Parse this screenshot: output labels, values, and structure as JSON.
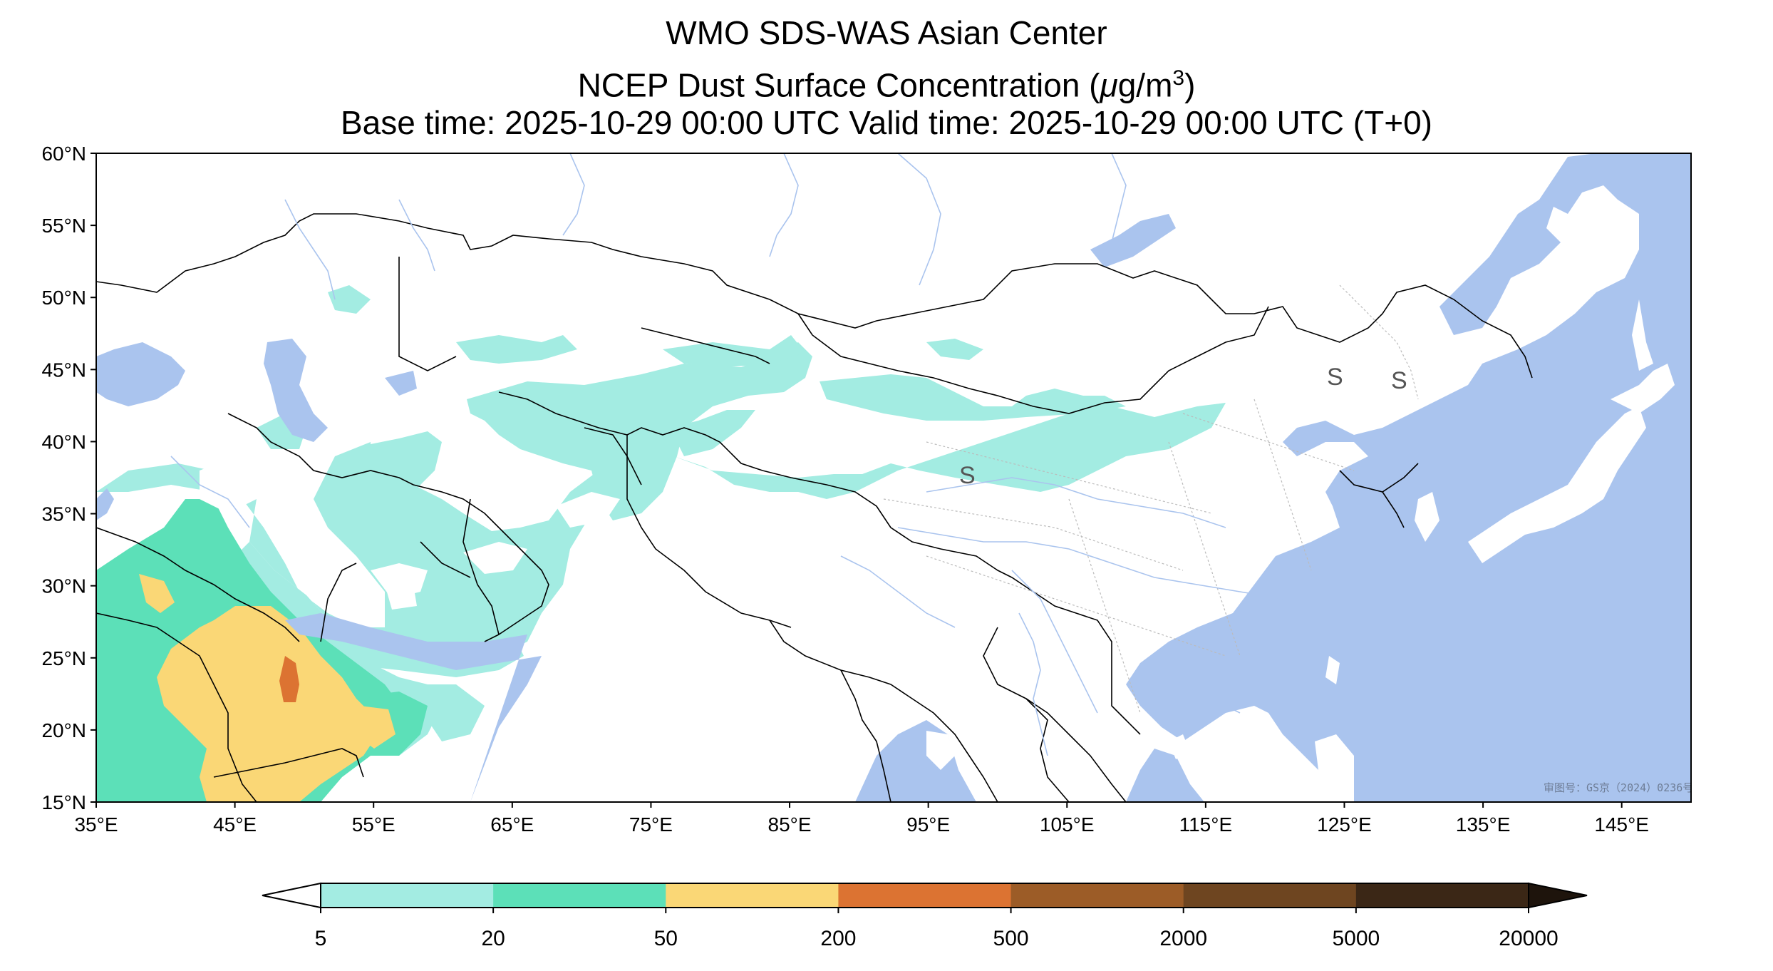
{
  "title": {
    "line1": "WMO SDS-WAS Asian Center",
    "line2_prefix": "NCEP Dust Surface Concentration (",
    "line2_unit_mu": "μ",
    "line2_unit_rest": "g/m",
    "line2_superscript": "3",
    "line2_suffix": ")",
    "line3": "Base time: 2025-10-29 00:00 UTC Valid time: 2025-10-29 00:00 UTC (T+0)"
  },
  "axes": {
    "x_labels": [
      "35°E",
      "45°E",
      "55°E",
      "65°E",
      "75°E",
      "85°E",
      "95°E",
      "105°E",
      "115°E",
      "125°E",
      "135°E",
      "145°E"
    ],
    "x_values": [
      35,
      45,
      55,
      65,
      75,
      85,
      95,
      105,
      115,
      125,
      135,
      145
    ],
    "y_labels": [
      "60°N",
      "55°N",
      "50°N",
      "45°N",
      "40°N",
      "35°N",
      "30°N",
      "25°N",
      "20°N",
      "15°N"
    ],
    "y_values": [
      60,
      55,
      50,
      45,
      40,
      35,
      30,
      25,
      20,
      15
    ],
    "lon_range": [
      35,
      150
    ],
    "lat_range": [
      15,
      60
    ]
  },
  "colorbar": {
    "labels": [
      "5",
      "20",
      "50",
      "200",
      "500",
      "2000",
      "5000",
      "20000"
    ],
    "colors": [
      "#a3ece2",
      "#5ce0b8",
      "#fad776",
      "#dc7332",
      "#9c5c27",
      "#6e4520",
      "#3b2716"
    ],
    "under_color": "#ffffff",
    "over_color": "#1e140c"
  },
  "map": {
    "ocean_color": "#aac4ee",
    "land_color": "#ffffff",
    "border_color": "#000000",
    "province_color": "#bbbbbb",
    "river_color": "#aac4ee",
    "review_number": "审图号：GS京（2024）0236号",
    "marker_glyph": "S"
  }
}
